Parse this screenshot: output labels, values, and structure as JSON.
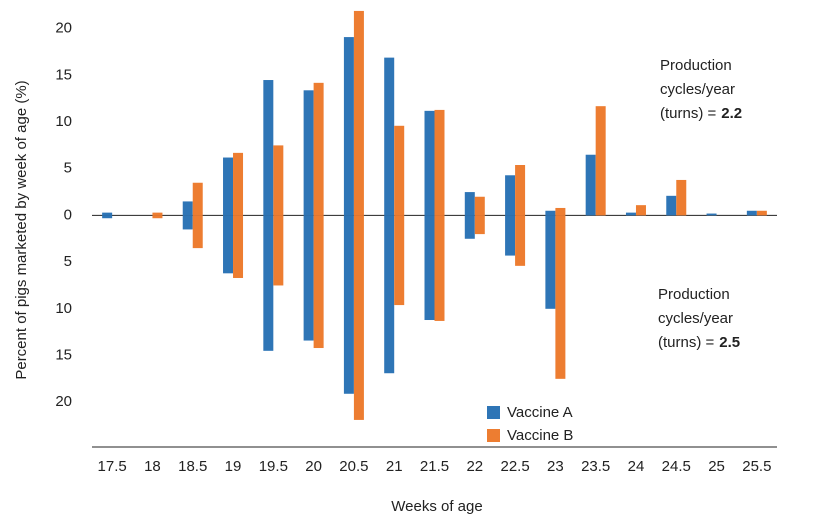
{
  "chart_data": {
    "type": "bar",
    "y_label": "Percent of pigs marketed by week of age (%)",
    "x_label": "Weeks of age",
    "categories": [
      "17.5",
      "18",
      "18.5",
      "19",
      "19.5",
      "20",
      "20.5",
      "21",
      "21.5",
      "22",
      "22.5",
      "23",
      "23.5",
      "24",
      "24.5",
      "25",
      "25.5"
    ],
    "series": [
      {
        "name": "Vaccine A",
        "color": "#2e75b6",
        "values": [
          0.3,
          null,
          1.5,
          6.2,
          14.5,
          13.4,
          19.1,
          16.9,
          11.2,
          2.5,
          4.3,
          0.5,
          6.5,
          0.3,
          2.1,
          0.2,
          0.5
        ],
        "lower_values": [
          -0.3,
          null,
          -1.5,
          -6.2,
          -14.5,
          -13.4,
          -19.1,
          -16.9,
          -11.2,
          -2.5,
          -4.3,
          -10,
          null,
          null,
          null,
          null,
          null
        ]
      },
      {
        "name": "Vaccine B",
        "color": "#ed7d31",
        "values": [
          null,
          0.3,
          3.5,
          6.7,
          7.5,
          14.2,
          21.9,
          9.6,
          11.3,
          2.0,
          5.4,
          0.8,
          11.7,
          1.1,
          3.8,
          null,
          0.5
        ],
        "lower_values": [
          null,
          -0.3,
          -3.5,
          -6.7,
          -7.5,
          -14.2,
          -21.9,
          -9.6,
          -11.3,
          -2.0,
          -5.4,
          -17.5,
          null,
          null,
          null,
          null,
          null
        ]
      }
    ],
    "ylim": [
      -24.8,
      22
    ],
    "yticks": [
      20,
      15,
      10,
      5,
      0,
      {
        "value": -5,
        "label": "5"
      },
      {
        "value": -10,
        "label": "10"
      },
      {
        "value": -15,
        "label": "15"
      },
      {
        "value": -20,
        "label": "20"
      }
    ],
    "annotations": [
      {
        "lines": [
          "Production",
          "cycles/year",
          "(turns) ="
        ],
        "turns": 2.2
      },
      {
        "lines": [
          "Production",
          "cycles/year",
          "(turns) ="
        ],
        "turns": 2.5
      }
    ],
    "legend": "bottom-center"
  }
}
